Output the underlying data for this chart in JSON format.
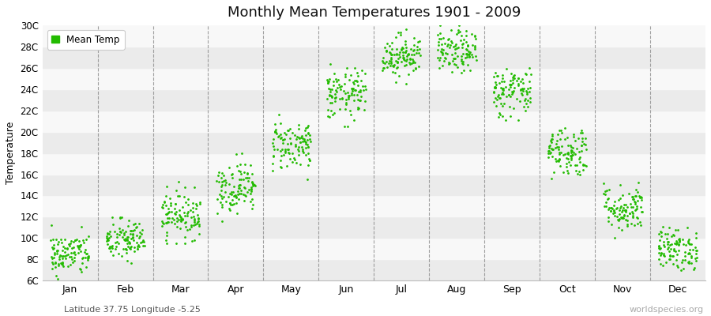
{
  "title": "Monthly Mean Temperatures 1901 - 2009",
  "ylabel": "Temperature",
  "subtitle": "Latitude 37.75 Longitude -5.25",
  "watermark": "worldspecies.org",
  "dot_color": "#22bb00",
  "background_color": "#ffffff",
  "plot_bg_color": "#ffffff",
  "stripe_dark": "#ebebeb",
  "stripe_light": "#f8f8f8",
  "ylim": [
    6,
    30
  ],
  "yticks": [
    6,
    8,
    10,
    12,
    14,
    16,
    18,
    20,
    22,
    24,
    26,
    28,
    30
  ],
  "ytick_labels": [
    "6C",
    "8C",
    "10C",
    "12C",
    "14C",
    "16C",
    "18C",
    "20C",
    "22C",
    "24C",
    "26C",
    "28C",
    "30C"
  ],
  "months": [
    "Jan",
    "Feb",
    "Mar",
    "Apr",
    "May",
    "Jun",
    "Jul",
    "Aug",
    "Sep",
    "Oct",
    "Nov",
    "Dec"
  ],
  "month_means": [
    8.5,
    9.8,
    12.2,
    14.8,
    18.8,
    23.5,
    27.2,
    27.5,
    23.8,
    18.2,
    12.8,
    9.0
  ],
  "month_stds": [
    1.0,
    1.0,
    1.1,
    1.2,
    1.2,
    1.2,
    1.0,
    1.0,
    1.2,
    1.2,
    1.1,
    1.0
  ],
  "month_mins": [
    6.2,
    7.0,
    9.5,
    11.5,
    15.5,
    20.5,
    24.5,
    24.8,
    20.5,
    15.0,
    10.0,
    7.0
  ],
  "month_maxs": [
    11.5,
    12.0,
    15.5,
    18.5,
    22.0,
    26.5,
    30.0,
    30.0,
    27.2,
    21.5,
    16.5,
    11.5
  ],
  "n_points": 109,
  "dot_size": 4,
  "legend_label": "Mean Temp"
}
